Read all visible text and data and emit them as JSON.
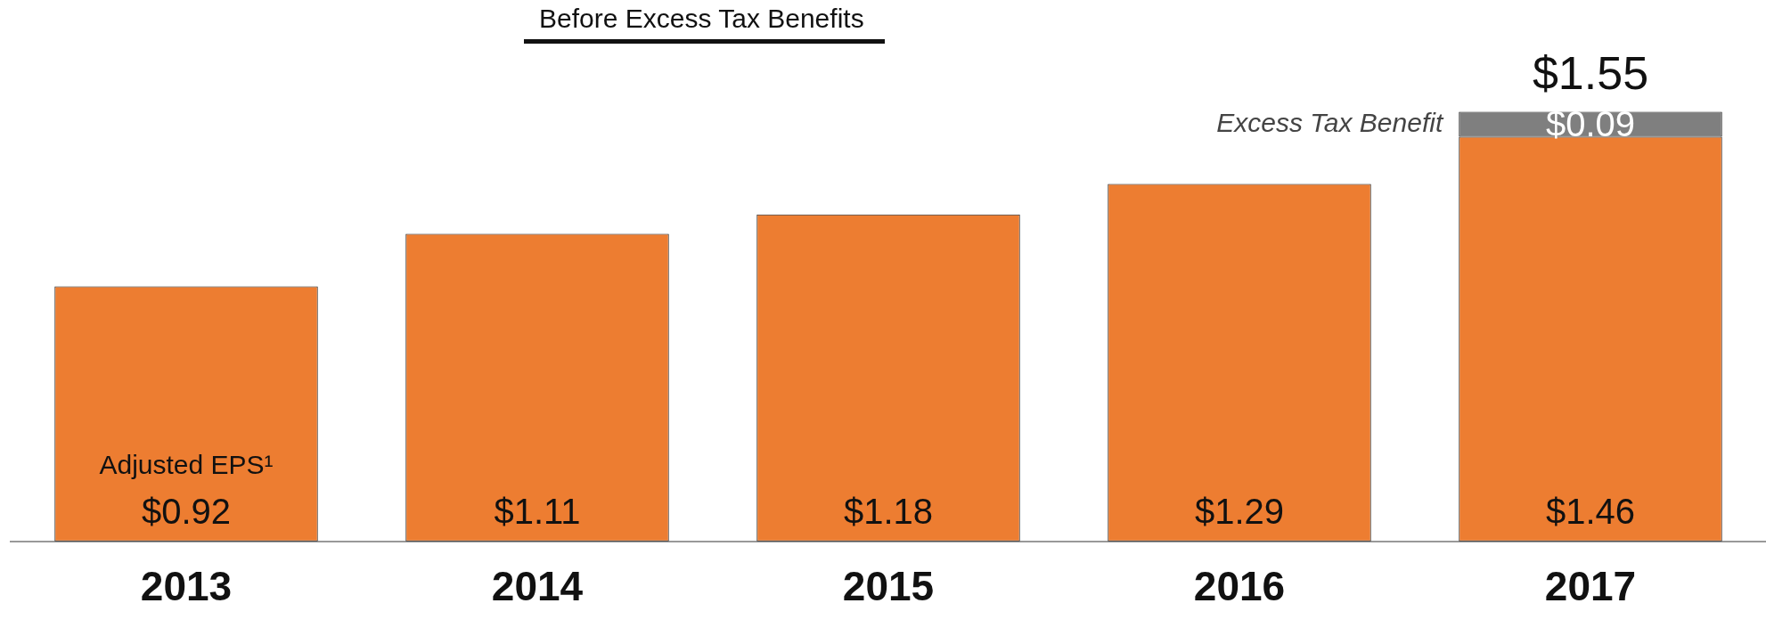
{
  "chart_data": {
    "type": "bar",
    "stacked": true,
    "categories": [
      "2013",
      "2014",
      "2015",
      "2016",
      "2017"
    ],
    "series": [
      {
        "name": "Adjusted EPS¹",
        "color": "#ed7d31",
        "values": [
          0.92,
          1.11,
          1.18,
          1.29,
          1.46
        ],
        "value_labels": [
          "$0.92",
          "$1.11",
          "$1.18",
          "$1.29",
          "$1.46"
        ]
      },
      {
        "name": "Excess Tax Benefit",
        "color": "#7f7f7f",
        "values": [
          null,
          null,
          null,
          null,
          0.09
        ],
        "value_labels": [
          null,
          null,
          null,
          null,
          "$0.09"
        ]
      }
    ],
    "totals": [
      null,
      null,
      null,
      null,
      "$1.55"
    ],
    "tick_labels": "x",
    "legend": false,
    "grid": false,
    "annotations": [
      "Before Excess Tax Benefits"
    ]
  }
}
